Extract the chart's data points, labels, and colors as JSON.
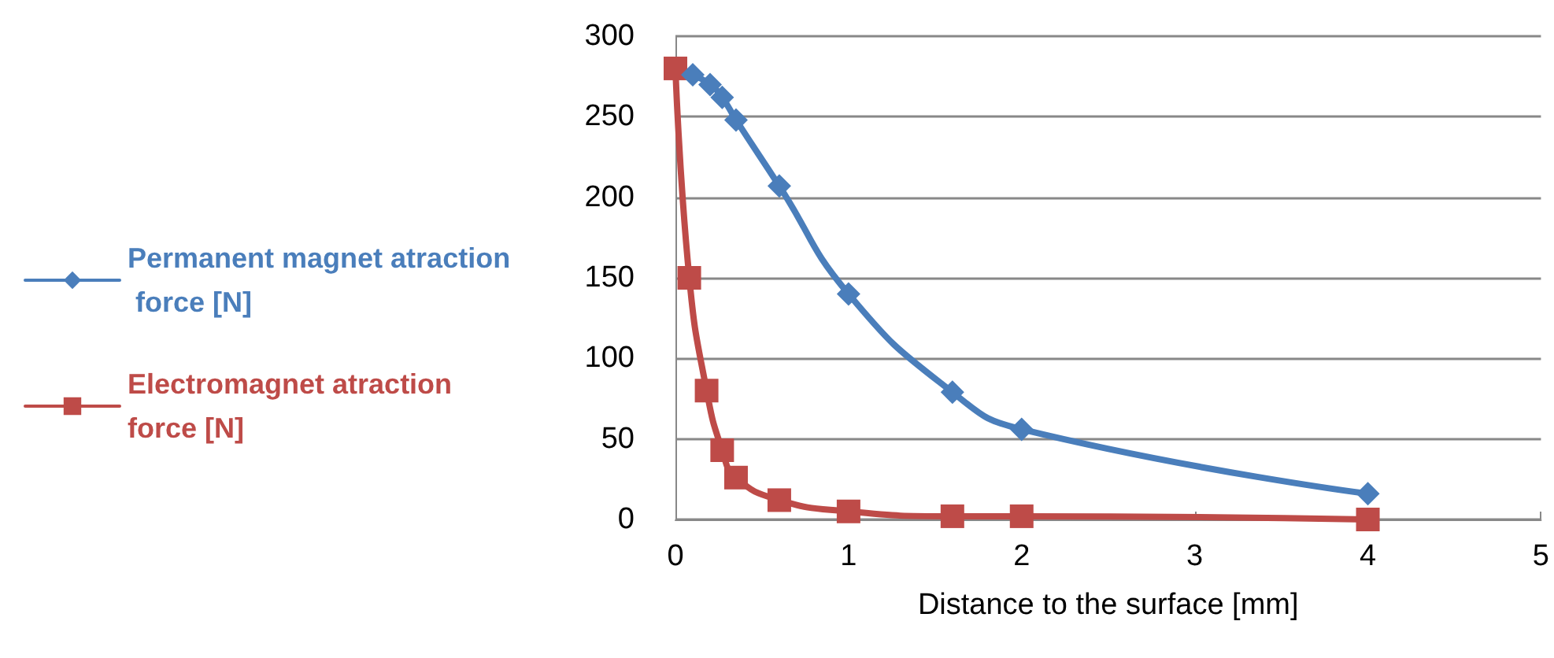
{
  "chart_data": {
    "type": "line",
    "xlabel": "Distance to the surface [mm]",
    "xlim": [
      0,
      5
    ],
    "xticks": [
      0,
      1,
      2,
      3,
      4,
      5
    ],
    "ylim": [
      0,
      300
    ],
    "yticks": [
      0,
      50,
      100,
      150,
      200,
      250,
      300
    ],
    "grid": "y",
    "legend": "left",
    "line_style": "solid",
    "series": [
      {
        "name": "Permanent magnet atraction force [N]",
        "color": "#4a7ebb",
        "marker": "diamond",
        "x": [
          0.1,
          0.2,
          0.27,
          0.35,
          0.6,
          1,
          1.6,
          2,
          4
        ],
        "values": [
          276,
          270,
          262,
          248,
          207,
          140,
          79,
          56,
          16
        ]
      },
      {
        "name": "Electromagnet atraction force [N]",
        "color": "#be4b48",
        "marker": "square",
        "x": [
          0,
          0.08,
          0.18,
          0.27,
          0.35,
          0.6,
          1,
          1.6,
          2,
          4
        ],
        "values": [
          280,
          150,
          80,
          43,
          26,
          12,
          5,
          2,
          2,
          0
        ]
      }
    ]
  }
}
